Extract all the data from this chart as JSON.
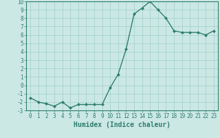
{
  "x": [
    0,
    1,
    2,
    3,
    4,
    5,
    6,
    7,
    8,
    9,
    10,
    11,
    12,
    13,
    14,
    15,
    16,
    17,
    18,
    19,
    20,
    21,
    22,
    23
  ],
  "y": [
    -1.5,
    -2.0,
    -2.2,
    -2.5,
    -2.0,
    -2.7,
    -2.3,
    -2.3,
    -2.3,
    -2.3,
    -0.3,
    1.3,
    4.3,
    8.5,
    9.2,
    10.0,
    9.0,
    8.0,
    6.5,
    6.3,
    6.3,
    6.3,
    6.0,
    6.5
  ],
  "xlabel": "Humidex (Indice chaleur)",
  "ylabel": "",
  "ylim": [
    -3,
    10
  ],
  "xlim": [
    -0.5,
    23.5
  ],
  "yticks": [
    -3,
    -2,
    -1,
    0,
    1,
    2,
    3,
    4,
    5,
    6,
    7,
    8,
    9,
    10
  ],
  "xticks": [
    0,
    1,
    2,
    3,
    4,
    5,
    6,
    7,
    8,
    9,
    10,
    11,
    12,
    13,
    14,
    15,
    16,
    17,
    18,
    19,
    20,
    21,
    22,
    23
  ],
  "line_color": "#2e7d6e",
  "bg_color": "#cce8e4",
  "grid_color": "#9ecfc8",
  "marker": "D",
  "marker_size": 2.0,
  "line_width": 1.0,
  "xlabel_fontsize": 7,
  "tick_fontsize": 5.5
}
